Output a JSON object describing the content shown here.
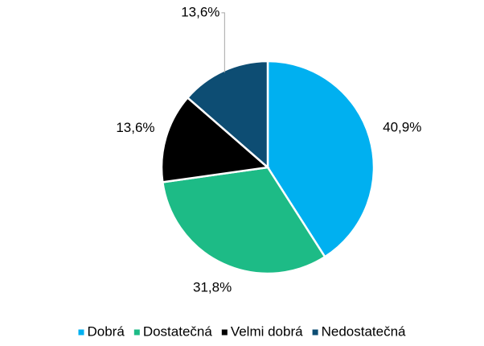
{
  "chart_data": {
    "type": "pie",
    "categories": [
      "Dobrá",
      "Dostatečná",
      "Velmi dobrá",
      "Nedostatečná"
    ],
    "values": [
      40.9,
      31.8,
      13.6,
      13.6
    ],
    "value_labels": [
      "40,9%",
      "31,8%",
      "13,6%",
      "13,6%"
    ],
    "colors": [
      "#00b0f0",
      "#1dbb86",
      "#000000",
      "#0d4d73"
    ],
    "legend": "bottom"
  }
}
